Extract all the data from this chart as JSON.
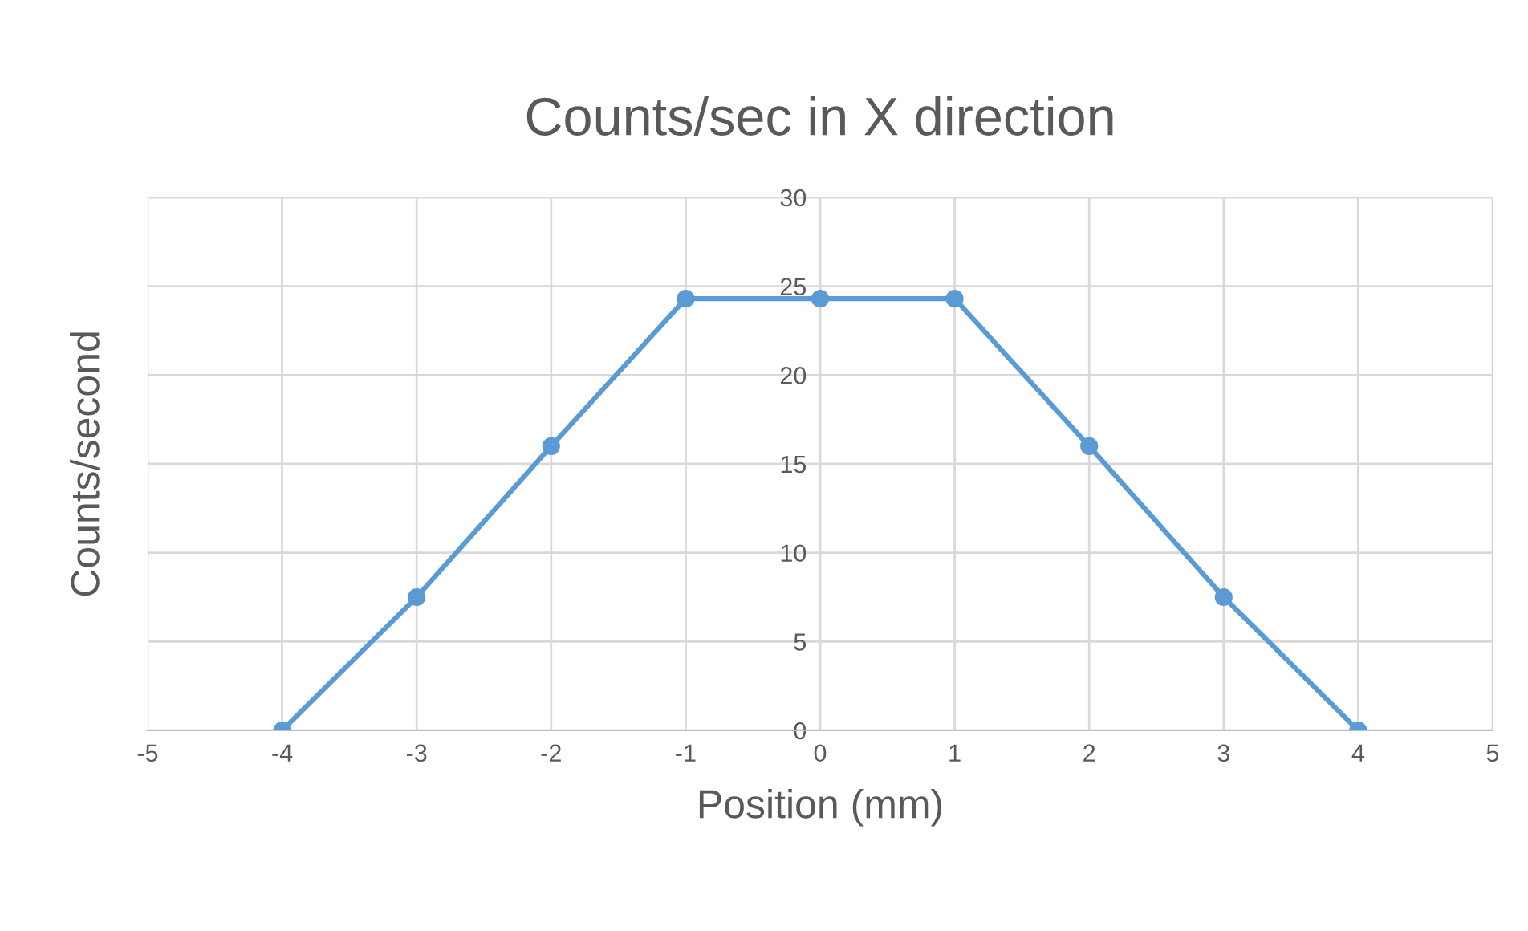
{
  "chart_data": {
    "type": "line",
    "title": "Counts/sec in X direction",
    "xlabel": "Position (mm)",
    "ylabel": "Counts/second",
    "x": [
      -4,
      -3,
      -2,
      -1,
      0,
      1,
      2,
      3,
      4
    ],
    "series": [
      {
        "color": "#5b9bd5",
        "values": [
          0,
          7.5,
          16,
          24.3,
          24.3,
          24.3,
          16,
          7.5,
          0
        ]
      }
    ],
    "xlim": [
      -5,
      5
    ],
    "xticks": [
      -5,
      -4,
      -3,
      -2,
      -1,
      0,
      1,
      2,
      3,
      4,
      5
    ],
    "ylim": [
      0,
      30
    ],
    "yticks": [
      0,
      5,
      10,
      15,
      20,
      25,
      30
    ],
    "grid": true,
    "marker": "circle",
    "line_style": "solid"
  }
}
